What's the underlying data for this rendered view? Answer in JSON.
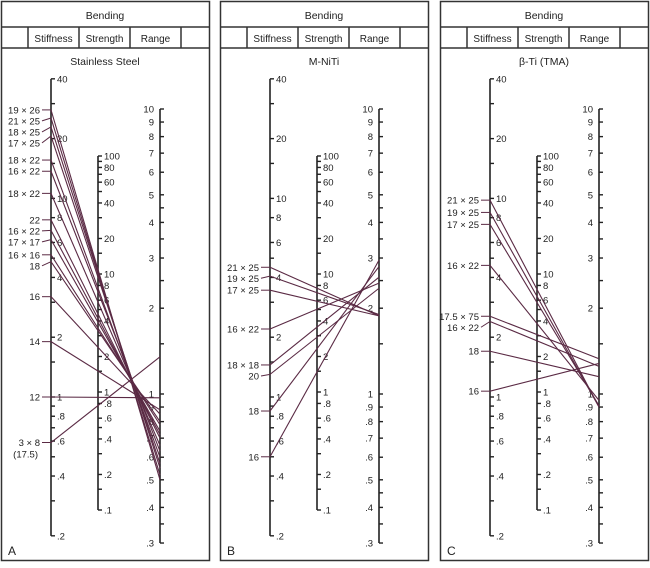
{
  "header": {
    "title": "Bending",
    "columns": [
      "Stiffness",
      "Strength",
      "Range"
    ]
  },
  "colors": {
    "wire_line": "#5a2a44",
    "axis": "#222222",
    "frame": "#333333"
  },
  "scales": {
    "stiffness": {
      "ticks": [
        40,
        30,
        20,
        15,
        10,
        8,
        6,
        5,
        4,
        3,
        2,
        1.5,
        1,
        0.9,
        0.8,
        0.7,
        0.6,
        0.5,
        0.4,
        0.3,
        0.2
      ],
      "labels": {
        "40": "40",
        "20": "20",
        "10": "10",
        "8": "8",
        "6": "6",
        "4": "4",
        "2": "2",
        "1": "1",
        "0.8": ".8",
        "0.6": ".6",
        "0.4": ".4",
        "0.2": ".2"
      },
      "range": [
        0.2,
        40
      ],
      "log": true
    },
    "strength": {
      "ticks": [
        100,
        90,
        80,
        70,
        60,
        50,
        40,
        30,
        20,
        15,
        10,
        8,
        6,
        5,
        4,
        3,
        2,
        1.5,
        1,
        0.8,
        0.6,
        0.5,
        0.4,
        0.3,
        0.2,
        0.15,
        0.1
      ],
      "labels": {
        "100": "100",
        "80": "80",
        "60": "60",
        "40": "40",
        "20": "20",
        "10": "10",
        "8": "8",
        "6": "6",
        "4": "4",
        "2": "2",
        "1": "1",
        "0.8": ".8",
        "0.6": ".6",
        "0.4": ".4",
        "0.2": ".2",
        "0.1": ".1"
      },
      "range": [
        0.1,
        100
      ],
      "log": true
    },
    "range": {
      "ticks": [
        10,
        9,
        8,
        7,
        6,
        5,
        4.5,
        4,
        3.5,
        3,
        2.5,
        2,
        1.5,
        1,
        0.9,
        0.8,
        0.7,
        0.6,
        0.5,
        0.45,
        0.4,
        0.35,
        0.3
      ],
      "labels": {
        "10": "10",
        "9": "9",
        "8": "8",
        "7": "7",
        "6": "6",
        "5": "5",
        "4": "4",
        "3": "3",
        "2": "2",
        "1": "1",
        "0.9": ".9",
        "0.8": ".8",
        "0.7": ".7",
        "0.6": ".6",
        "0.5": ".5",
        "0.4": ".4",
        "0.3": ".3"
      },
      "range": [
        0.3,
        10
      ],
      "log": true
    }
  },
  "panels": [
    {
      "letter": "A",
      "material": "Stainless Steel",
      "wires": [
        {
          "label": "19 × 26",
          "stiffness": 27.9,
          "range": 0.5
        },
        {
          "label": "21 × 25",
          "stiffness": 25.4,
          "range": 0.52
        },
        {
          "label": "18 × 25",
          "stiffness": 22.9,
          "range": 0.55
        },
        {
          "label": "17 × 25",
          "stiffness": 20.6,
          "range": 0.57
        },
        {
          "label": "18 × 22",
          "stiffness": 15.6,
          "range": 0.6
        },
        {
          "label": "16 × 22",
          "stiffness": 13.7,
          "range": 0.63
        },
        {
          "label": "18 × 22",
          "stiffness": 10.6,
          "range": 0.66
        },
        {
          "label": "22",
          "stiffness": 7.8,
          "range": 0.7
        },
        {
          "label": "16 × 22",
          "stiffness": 6.9,
          "range": 0.72
        },
        {
          "label": "17 × 17",
          "stiffness": 6.2,
          "range": 0.74
        },
        {
          "label": "16 × 16",
          "stiffness": 5.2,
          "range": 0.78
        },
        {
          "label": "18",
          "stiffness": 4.8,
          "range": 0.8
        },
        {
          "label": "16",
          "stiffness": 3.2,
          "range": 0.85
        },
        {
          "label": "14",
          "stiffness": 1.9,
          "range": 0.88
        },
        {
          "label": "12",
          "stiffness": 1.0,
          "range": 0.97
        },
        {
          "label": "3 × 8",
          "sublabel": "(17.5)",
          "stiffness": 0.59,
          "range": 1.35
        }
      ]
    },
    {
      "letter": "B",
      "material": "M-NiTi",
      "wires": [
        {
          "label": "21 × 25",
          "stiffness": 4.5,
          "range": 1.88
        },
        {
          "label": "19 × 25",
          "stiffness": 4.06,
          "range": 1.9
        },
        {
          "label": "17 × 25",
          "stiffness": 3.45,
          "range": 1.88
        },
        {
          "label": "16 × 22",
          "stiffness": 2.2,
          "range": 2.45
        },
        {
          "label": "18 × 18",
          "stiffness": 1.45,
          "range": 2.57
        },
        {
          "label": "20",
          "stiffness": 1.3,
          "range": 2.35
        },
        {
          "label": "18",
          "stiffness": 0.85,
          "range": 2.8
        },
        {
          "label": "16",
          "stiffness": 0.5,
          "range": 2.95
        }
      ]
    },
    {
      "letter": "C",
      "material": "β-Ti (TMA)",
      "wires": [
        {
          "label": "21 × 25",
          "stiffness": 9.8,
          "range": 0.9
        },
        {
          "label": "19 × 25",
          "stiffness": 8.5,
          "range": 0.9
        },
        {
          "label": "17 × 25",
          "stiffness": 7.4,
          "range": 0.91
        },
        {
          "label": "16 × 22",
          "stiffness": 4.6,
          "range": 0.95
        },
        {
          "label": "17.5 × 75",
          "stiffness": 2.55,
          "range": 1.33
        },
        {
          "label": "16 × 22",
          "stiffness": 2.4,
          "range": 1.25
        },
        {
          "label": "18",
          "stiffness": 1.7,
          "range": 1.15
        },
        {
          "label": "16",
          "stiffness": 1.07,
          "range": 1.28
        }
      ]
    }
  ]
}
